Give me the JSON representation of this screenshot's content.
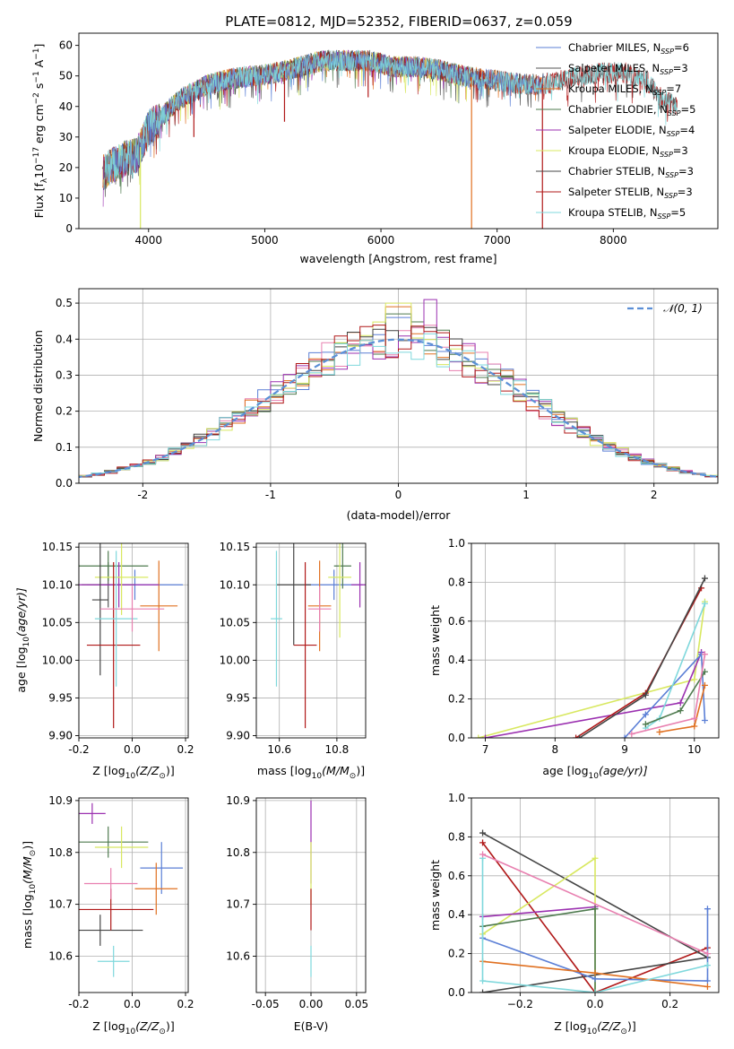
{
  "figure": {
    "title": "PLATE=0812, MJD=52352, FIBERID=0637, z=0.059"
  },
  "colors": {
    "Chabrier MILES": "#5b7fd6",
    "Salpeter MILES": "#555555",
    "Kroupa MILES": "#e07020",
    "Chabrier ELODIE": "#4e7a4e",
    "Salpeter ELODIE": "#9b30b0",
    "Kroupa ELODIE": "#d8e860",
    "Chabrier STELIB": "#444444",
    "Salpeter STELIB": "#b01818",
    "Kroupa STELIB": "#7fd8dc"
  },
  "chart_data": [
    {
      "id": "spectrum",
      "type": "line",
      "title": "PLATE=0812, MJD=52352, FIBERID=0637, z=0.059",
      "xlabel": "wavelength [Angstrom, rest frame]",
      "ylabel_parts": [
        "Flux [f",
        "λ",
        "10",
        "−17",
        " erg cm",
        "−2",
        " s",
        "−1",
        " A",
        "−1",
        "]"
      ],
      "xlim": [
        3400,
        8900
      ],
      "ylim": [
        0,
        64
      ],
      "xticks": [
        4000,
        5000,
        6000,
        7000,
        8000
      ],
      "yticks": [
        0,
        10,
        20,
        30,
        40,
        50,
        60
      ],
      "legend_position": "upper right",
      "series": [
        {
          "label": "Chabrier MILES, N",
          "sub": "SSP",
          "n": "=6",
          "key": "Chabrier MILES"
        },
        {
          "label": "Salpeter MILES, N",
          "sub": "SSP",
          "n": "=3",
          "key": "Salpeter MILES"
        },
        {
          "label": "Kroupa MILES, N",
          "sub": "SSP",
          "n": "=7",
          "key": "Kroupa MILES"
        },
        {
          "label": "Chabrier ELODIE, N",
          "sub": "SSP",
          "n": "=5",
          "key": "Chabrier ELODIE"
        },
        {
          "label": "Salpeter ELODIE, N",
          "sub": "SSP",
          "n": "=4",
          "key": "Salpeter ELODIE"
        },
        {
          "label": "Kroupa ELODIE, N",
          "sub": "SSP",
          "n": "=3",
          "key": "Kroupa ELODIE"
        },
        {
          "label": "Chabrier STELIB, N",
          "sub": "SSP",
          "n": "=3",
          "key": "Chabrier STELIB"
        },
        {
          "label": "Salpeter STELIB, N",
          "sub": "SSP",
          "n": "=3",
          "key": "Salpeter STELIB"
        },
        {
          "label": "Kroupa STELIB, N",
          "sub": "SSP",
          "n": "=5",
          "key": "Kroupa STELIB"
        }
      ],
      "continuum": [
        [
          3600,
          18
        ],
        [
          3700,
          21
        ],
        [
          3800,
          23
        ],
        [
          3900,
          24
        ],
        [
          4000,
          33
        ],
        [
          4100,
          36
        ],
        [
          4200,
          40
        ],
        [
          4300,
          43
        ],
        [
          4400,
          45
        ],
        [
          4500,
          47
        ],
        [
          4700,
          49
        ],
        [
          4900,
          50
        ],
        [
          5100,
          51
        ],
        [
          5300,
          53
        ],
        [
          5500,
          55
        ],
        [
          5700,
          55
        ],
        [
          5900,
          55
        ],
        [
          6100,
          53
        ],
        [
          6300,
          53
        ],
        [
          6500,
          52
        ],
        [
          6700,
          50
        ],
        [
          6900,
          49
        ],
        [
          7100,
          48
        ],
        [
          7300,
          47
        ],
        [
          7500,
          48
        ],
        [
          7700,
          50
        ],
        [
          7900,
          51
        ],
        [
          8100,
          51
        ],
        [
          8300,
          48
        ],
        [
          8400,
          43
        ],
        [
          8550,
          40
        ]
      ],
      "dips": [
        [
          3930,
          0
        ],
        [
          6780,
          0
        ],
        [
          7390,
          0
        ],
        [
          4390,
          30
        ],
        [
          5170,
          35
        ],
        [
          5890,
          43
        ]
      ]
    },
    {
      "id": "residuals",
      "type": "histogram",
      "xlabel": "(data-model)/error",
      "ylabel": "Normed distribution",
      "xlim": [
        -2.5,
        2.5
      ],
      "ylim": [
        0,
        0.54
      ],
      "xticks": [
        -2,
        -1,
        0,
        1,
        2
      ],
      "yticks": [
        0.0,
        0.1,
        0.2,
        0.3,
        0.4,
        0.5
      ],
      "bin_width": 0.1,
      "reference": {
        "label": "𝒩(0, 1)",
        "mean": 0,
        "sigma": 1
      },
      "peak_values": {
        "Salpeter ELODIE": 0.51,
        "Kroupa ELODIE": 0.5,
        "Kroupa MILES": 0.49,
        "Chabrier ELODIE": 0.47,
        "Chabrier MILES": 0.46
      }
    },
    {
      "id": "age_vs_z",
      "type": "errorbar",
      "xlabel": "Z [log",
      "xlabel_tail": "(Z/Z",
      "xlabel_end": ")]",
      "ylabel": "age  [log",
      "ylabel_tail": "(age/yr)]",
      "xlim": [
        -0.2,
        0.21
      ],
      "ylim": [
        9.897,
        10.155
      ],
      "xticks": [
        -0.2,
        0.0,
        0.2
      ],
      "yticks": [
        9.9,
        9.95,
        10.0,
        10.05,
        10.1,
        10.15
      ],
      "points": [
        {
          "key": "Chabrier MILES",
          "x": 0.01,
          "xerr": 0.18,
          "y": 10.1,
          "yerr": 0.02
        },
        {
          "key": "Salpeter MILES",
          "x": -0.09,
          "xerr": 0.1,
          "y": 10.1,
          "yerr": 0.03
        },
        {
          "key": "Kroupa MILES",
          "x": 0.1,
          "xerr": 0.07,
          "y": 10.072,
          "yerr": 0.06
        },
        {
          "key": "Chabrier ELODIE",
          "x": -0.09,
          "xerr": 0.15,
          "y": 10.125,
          "yerr": 0.02
        },
        {
          "key": "Salpeter ELODIE",
          "x": -0.05,
          "xerr": 0.15,
          "y": 10.1,
          "yerr": 0.03
        },
        {
          "key": "Kroupa ELODIE",
          "x": -0.04,
          "xerr": 0.1,
          "y": 10.11,
          "yerr": 0.05
        },
        {
          "key": "Chabrier STELIB",
          "x": -0.12,
          "xerr": 0.03,
          "y": 10.08,
          "yerr": 0.1
        },
        {
          "key": "Salpeter STELIB",
          "x": -0.07,
          "xerr": 0.1,
          "y": 10.02,
          "yerr": 0.11
        },
        {
          "key": "Kroupa STELIB",
          "x": -0.06,
          "xerr": 0.08,
          "y": 10.055,
          "yerr": 0.09
        },
        {
          "key": "Salpeter MILES",
          "x": 0.0,
          "xerr": 0.12,
          "y": 10.068,
          "yerr": 0.03,
          "alt": "#e880b0"
        }
      ]
    },
    {
      "id": "age_vs_mass",
      "type": "errorbar",
      "xlabel": "mass [log",
      "xlabel_tail": "(M/M",
      "xlabel_end": ")]",
      "xlim": [
        10.52,
        10.9
      ],
      "ylim": [
        9.897,
        10.155
      ],
      "xticks": [
        10.6,
        10.8
      ],
      "yticks": [
        9.9,
        9.95,
        10.0,
        10.05,
        10.1,
        10.15
      ],
      "points": [
        {
          "key": "Chabrier MILES",
          "x": 10.79,
          "xerr": 0.1,
          "y": 10.1,
          "yerr": 0.02
        },
        {
          "key": "Kroupa MILES",
          "x": 10.74,
          "xerr": 0.04,
          "y": 10.072,
          "yerr": 0.06
        },
        {
          "key": "Chabrier ELODIE",
          "x": 10.82,
          "xerr": 0.03,
          "y": 10.125,
          "yerr": 0.03
        },
        {
          "key": "Salpeter ELODIE",
          "x": 10.88,
          "xerr": 0.03,
          "y": 10.1,
          "yerr": 0.03
        },
        {
          "key": "Kroupa ELODIE",
          "x": 10.81,
          "xerr": 0.04,
          "y": 10.11,
          "yerr": 0.08
        },
        {
          "key": "Chabrier STELIB",
          "x": 10.65,
          "xerr": 0.06,
          "y": 10.1,
          "yerr": 0.08
        },
        {
          "key": "Salpeter STELIB",
          "x": 10.69,
          "xerr": 0.04,
          "y": 10.02,
          "yerr": 0.11
        },
        {
          "key": "Kroupa STELIB",
          "x": 10.59,
          "xerr": 0.02,
          "y": 10.055,
          "yerr": 0.09
        },
        {
          "key": "Salpeter MILES",
          "x": 10.74,
          "xerr": 0.04,
          "y": 10.068,
          "yerr": 0.03,
          "alt": "#e880b0"
        }
      ]
    },
    {
      "id": "mass_weight_vs_age",
      "type": "line",
      "xlabel": "age  [log",
      "xlabel_tail": "(age/yr)]",
      "ylabel": "mass weight",
      "xlim": [
        6.8,
        10.35
      ],
      "ylim": [
        0,
        1
      ],
      "xticks": [
        7,
        8,
        9,
        10
      ],
      "yticks": [
        0.0,
        0.2,
        0.4,
        0.6,
        0.8,
        1.0
      ],
      "series": [
        {
          "key": "Kroupa ELODIE",
          "points": [
            [
              6.9,
              0.0
            ],
            [
              10.0,
              0.3
            ],
            [
              10.15,
              0.7
            ]
          ]
        },
        {
          "key": "Salpeter ELODIE",
          "points": [
            [
              7.0,
              0.0
            ],
            [
              9.8,
              0.18
            ],
            [
              10.1,
              0.44
            ]
          ]
        },
        {
          "key": "Salpeter STELIB",
          "points": [
            [
              8.3,
              0.0
            ],
            [
              9.3,
              0.23
            ],
            [
              10.1,
              0.77
            ]
          ]
        },
        {
          "key": "Chabrier STELIB",
          "points": [
            [
              8.35,
              0.0
            ],
            [
              9.3,
              0.22
            ],
            [
              10.15,
              0.82
            ]
          ]
        },
        {
          "key": "Chabrier MILES",
          "points": [
            [
              9.0,
              0.0
            ],
            [
              9.3,
              0.12
            ],
            [
              10.1,
              0.43
            ],
            [
              10.15,
              0.09
            ]
          ]
        },
        {
          "key": "Kroupa STELIB",
          "points": [
            [
              9.3,
              0.05
            ],
            [
              9.5,
              0.1
            ],
            [
              10.15,
              0.69
            ]
          ]
        },
        {
          "key": "Chabrier ELODIE",
          "points": [
            [
              9.3,
              0.07
            ],
            [
              9.8,
              0.14
            ],
            [
              10.15,
              0.34
            ]
          ]
        },
        {
          "key": "Kroupa MILES",
          "points": [
            [
              9.5,
              0.03
            ],
            [
              10.0,
              0.06
            ],
            [
              10.15,
              0.27
            ]
          ]
        },
        {
          "key": "Salpeter MILES",
          "points": [
            [
              9.1,
              0.02
            ],
            [
              10.0,
              0.1
            ],
            [
              10.15,
              0.43
            ]
          ],
          "alt": "#e880b0"
        }
      ]
    },
    {
      "id": "mass_vs_z",
      "type": "errorbar",
      "xlabel": "Z [log",
      "xlabel_tail": "(Z/Z",
      "xlabel_end": ")]",
      "ylabel": "mass [log",
      "ylabel_tail": "(M/M",
      "ylabel_end": ")]",
      "xlim": [
        -0.2,
        0.21
      ],
      "ylim": [
        10.53,
        10.905
      ],
      "xticks": [
        -0.2,
        0.0,
        0.2
      ],
      "yticks": [
        10.6,
        10.7,
        10.8,
        10.9
      ],
      "points": [
        {
          "key": "Chabrier MILES",
          "x": 0.11,
          "xerr": 0.08,
          "y": 10.77,
          "yerr": 0.05
        },
        {
          "key": "Kroupa MILES",
          "x": 0.09,
          "xerr": 0.08,
          "y": 10.73,
          "yerr": 0.05
        },
        {
          "key": "Chabrier ELODIE",
          "x": -0.09,
          "xerr": 0.15,
          "y": 10.82,
          "yerr": 0.03
        },
        {
          "key": "Salpeter ELODIE",
          "x": -0.15,
          "xerr": 0.05,
          "y": 10.875,
          "yerr": 0.02
        },
        {
          "key": "Kroupa ELODIE",
          "x": -0.04,
          "xerr": 0.1,
          "y": 10.81,
          "yerr": 0.04
        },
        {
          "key": "Chabrier STELIB",
          "x": -0.12,
          "xerr": 0.16,
          "y": 10.65,
          "yerr": 0.03
        },
        {
          "key": "Salpeter STELIB",
          "x": -0.08,
          "xerr": 0.16,
          "y": 10.69,
          "yerr": 0.04
        },
        {
          "key": "Kroupa STELIB",
          "x": -0.07,
          "xerr": 0.06,
          "y": 10.59,
          "yerr": 0.03
        },
        {
          "key": "Salpeter MILES",
          "x": -0.08,
          "xerr": 0.1,
          "y": 10.74,
          "yerr": 0.03,
          "alt": "#e880b0"
        }
      ]
    },
    {
      "id": "mass_vs_ebv",
      "type": "errorbar",
      "xlabel": "E(B-V)",
      "xlim": [
        -0.06,
        0.06
      ],
      "ylim": [
        10.53,
        10.905
      ],
      "xticks": [
        -0.05,
        0.0,
        0.05
      ],
      "yticks": [
        10.6,
        10.7,
        10.8,
        10.9
      ],
      "points": [
        {
          "key": "Salpeter ELODIE",
          "x": 0.0,
          "xerr": 0.0,
          "y": 10.82,
          "yerr": 0.08
        },
        {
          "key": "Kroupa ELODIE",
          "x": 0.0,
          "xerr": 0.0,
          "y": 10.76,
          "yerr": 0.06
        },
        {
          "key": "Salpeter STELIB",
          "x": 0.0,
          "xerr": 0.0,
          "y": 10.69,
          "yerr": 0.04
        },
        {
          "key": "Kroupa STELIB",
          "x": 0.0,
          "xerr": 0.0,
          "y": 10.59,
          "yerr": 0.03
        }
      ]
    },
    {
      "id": "mass_weight_vs_z",
      "type": "line",
      "xlabel": "Z [log",
      "xlabel_tail": "(Z/Z",
      "xlabel_end": ")]",
      "ylabel": "mass weight",
      "xlim": [
        -0.33,
        0.33
      ],
      "ylim": [
        0,
        1
      ],
      "xticks": [
        -0.2,
        0.0,
        0.2
      ],
      "yticks": [
        0.0,
        0.2,
        0.4,
        0.6,
        0.8,
        1.0
      ],
      "series": [
        {
          "key": "Salpeter STELIB",
          "points": [
            [
              -0.3,
              0.77
            ],
            [
              0.0,
              0.0
            ],
            [
              0.3,
              0.23
            ]
          ]
        },
        {
          "key": "Chabrier STELIB",
          "points": [
            [
              -0.3,
              0.0
            ],
            [
              0.3,
              0.18
            ],
            [
              -0.3,
              0.82
            ]
          ]
        },
        {
          "key": "Kroupa ELODIE",
          "points": [
            [
              -0.3,
              0.3
            ],
            [
              0.0,
              0.69
            ],
            [
              0.0,
              0.0
            ]
          ]
        },
        {
          "key": "Salpeter ELODIE",
          "points": [
            [
              -0.3,
              0.39
            ],
            [
              0.0,
              0.44
            ]
          ]
        },
        {
          "key": "Chabrier ELODIE",
          "points": [
            [
              -0.3,
              0.34
            ],
            [
              0.0,
              0.43
            ],
            [
              0.0,
              0.0
            ]
          ]
        },
        {
          "key": "Chabrier MILES",
          "points": [
            [
              -0.3,
              0.28
            ],
            [
              0.0,
              0.07
            ],
            [
              0.3,
              0.06
            ],
            [
              0.3,
              0.43
            ]
          ]
        },
        {
          "key": "Kroupa MILES",
          "points": [
            [
              -0.3,
              0.16
            ],
            [
              0.0,
              0.1
            ],
            [
              0.3,
              0.03
            ]
          ]
        },
        {
          "key": "Kroupa STELIB",
          "points": [
            [
              -0.3,
              0.69
            ],
            [
              -0.3,
              0.06
            ],
            [
              0.0,
              0.0
            ],
            [
              0.3,
              0.14
            ]
          ]
        },
        {
          "key": "Salpeter MILES",
          "points": [
            [
              -0.3,
              0.71
            ],
            [
              0.3,
              0.2
            ]
          ],
          "alt": "#e880b0"
        }
      ]
    }
  ]
}
